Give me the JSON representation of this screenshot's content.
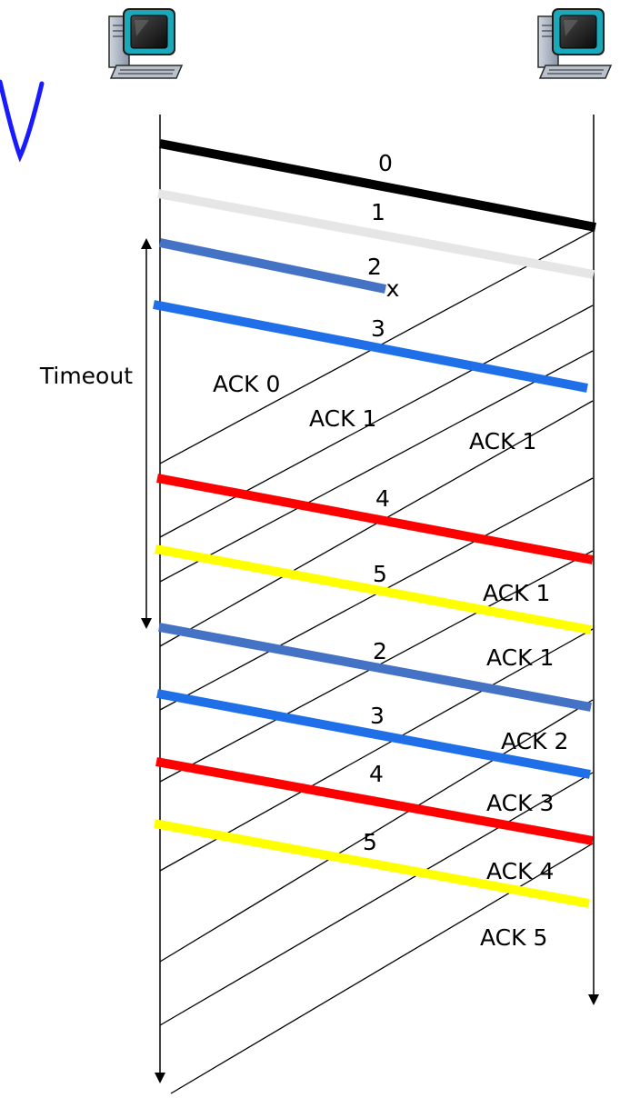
{
  "diagram": {
    "sender_icon": "computer-icon",
    "receiver_icon": "computer-icon",
    "timeout_label": "Timeout",
    "segments": [
      {
        "label": "0",
        "color": "#000000"
      },
      {
        "label": "1",
        "color": "#e6e6e6"
      },
      {
        "label": "2",
        "color": "#4472c4",
        "lost": true,
        "loss_mark": "x"
      },
      {
        "label": "3",
        "color": "#1f6fe8"
      },
      {
        "label": "4",
        "color": "#ff0000"
      },
      {
        "label": "5",
        "color": "#ffff00"
      },
      {
        "label": "2",
        "color": "#4472c4"
      },
      {
        "label": "3",
        "color": "#1f6fe8"
      },
      {
        "label": "4",
        "color": "#ff0000"
      },
      {
        "label": "5",
        "color": "#ffff00"
      }
    ],
    "acks": [
      {
        "label": "ACK 0"
      },
      {
        "label": "ACK 1"
      },
      {
        "label": "ACK 1"
      },
      {
        "label": "ACK 1"
      },
      {
        "label": "ACK 1"
      },
      {
        "label": "ACK 2"
      },
      {
        "label": "ACK 3"
      },
      {
        "label": "ACK 4"
      },
      {
        "label": "ACK 5"
      }
    ]
  }
}
